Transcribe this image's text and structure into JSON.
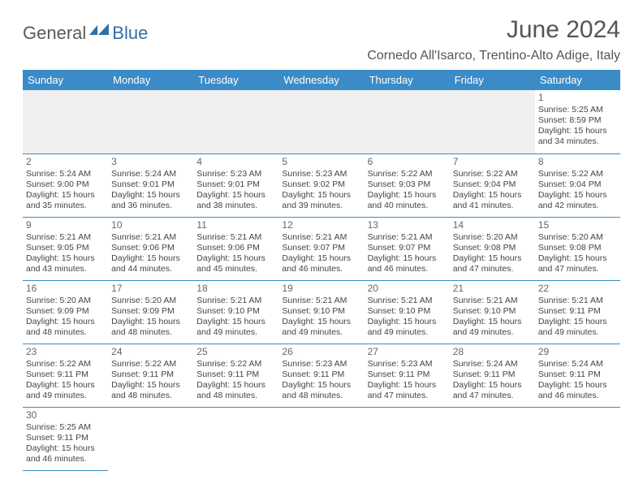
{
  "brand": {
    "part1": "General",
    "part2": "Blue"
  },
  "title": "June 2024",
  "location": "Cornedo All'Isarco, Trentino-Alto Adige, Italy",
  "colors": {
    "header_bg": "#3b8bc7",
    "header_fg": "#ffffff",
    "rule": "#3b8bc7"
  },
  "weekdays": [
    "Sunday",
    "Monday",
    "Tuesday",
    "Wednesday",
    "Thursday",
    "Friday",
    "Saturday"
  ],
  "weeks": [
    [
      null,
      null,
      null,
      null,
      null,
      null,
      {
        "n": "1",
        "sr": "Sunrise: 5:25 AM",
        "ss": "Sunset: 8:59 PM",
        "d1": "Daylight: 15 hours",
        "d2": "and 34 minutes."
      }
    ],
    [
      {
        "n": "2",
        "sr": "Sunrise: 5:24 AM",
        "ss": "Sunset: 9:00 PM",
        "d1": "Daylight: 15 hours",
        "d2": "and 35 minutes."
      },
      {
        "n": "3",
        "sr": "Sunrise: 5:24 AM",
        "ss": "Sunset: 9:01 PM",
        "d1": "Daylight: 15 hours",
        "d2": "and 36 minutes."
      },
      {
        "n": "4",
        "sr": "Sunrise: 5:23 AM",
        "ss": "Sunset: 9:01 PM",
        "d1": "Daylight: 15 hours",
        "d2": "and 38 minutes."
      },
      {
        "n": "5",
        "sr": "Sunrise: 5:23 AM",
        "ss": "Sunset: 9:02 PM",
        "d1": "Daylight: 15 hours",
        "d2": "and 39 minutes."
      },
      {
        "n": "6",
        "sr": "Sunrise: 5:22 AM",
        "ss": "Sunset: 9:03 PM",
        "d1": "Daylight: 15 hours",
        "d2": "and 40 minutes."
      },
      {
        "n": "7",
        "sr": "Sunrise: 5:22 AM",
        "ss": "Sunset: 9:04 PM",
        "d1": "Daylight: 15 hours",
        "d2": "and 41 minutes."
      },
      {
        "n": "8",
        "sr": "Sunrise: 5:22 AM",
        "ss": "Sunset: 9:04 PM",
        "d1": "Daylight: 15 hours",
        "d2": "and 42 minutes."
      }
    ],
    [
      {
        "n": "9",
        "sr": "Sunrise: 5:21 AM",
        "ss": "Sunset: 9:05 PM",
        "d1": "Daylight: 15 hours",
        "d2": "and 43 minutes."
      },
      {
        "n": "10",
        "sr": "Sunrise: 5:21 AM",
        "ss": "Sunset: 9:06 PM",
        "d1": "Daylight: 15 hours",
        "d2": "and 44 minutes."
      },
      {
        "n": "11",
        "sr": "Sunrise: 5:21 AM",
        "ss": "Sunset: 9:06 PM",
        "d1": "Daylight: 15 hours",
        "d2": "and 45 minutes."
      },
      {
        "n": "12",
        "sr": "Sunrise: 5:21 AM",
        "ss": "Sunset: 9:07 PM",
        "d1": "Daylight: 15 hours",
        "d2": "and 46 minutes."
      },
      {
        "n": "13",
        "sr": "Sunrise: 5:21 AM",
        "ss": "Sunset: 9:07 PM",
        "d1": "Daylight: 15 hours",
        "d2": "and 46 minutes."
      },
      {
        "n": "14",
        "sr": "Sunrise: 5:20 AM",
        "ss": "Sunset: 9:08 PM",
        "d1": "Daylight: 15 hours",
        "d2": "and 47 minutes."
      },
      {
        "n": "15",
        "sr": "Sunrise: 5:20 AM",
        "ss": "Sunset: 9:08 PM",
        "d1": "Daylight: 15 hours",
        "d2": "and 47 minutes."
      }
    ],
    [
      {
        "n": "16",
        "sr": "Sunrise: 5:20 AM",
        "ss": "Sunset: 9:09 PM",
        "d1": "Daylight: 15 hours",
        "d2": "and 48 minutes."
      },
      {
        "n": "17",
        "sr": "Sunrise: 5:20 AM",
        "ss": "Sunset: 9:09 PM",
        "d1": "Daylight: 15 hours",
        "d2": "and 48 minutes."
      },
      {
        "n": "18",
        "sr": "Sunrise: 5:21 AM",
        "ss": "Sunset: 9:10 PM",
        "d1": "Daylight: 15 hours",
        "d2": "and 49 minutes."
      },
      {
        "n": "19",
        "sr": "Sunrise: 5:21 AM",
        "ss": "Sunset: 9:10 PM",
        "d1": "Daylight: 15 hours",
        "d2": "and 49 minutes."
      },
      {
        "n": "20",
        "sr": "Sunrise: 5:21 AM",
        "ss": "Sunset: 9:10 PM",
        "d1": "Daylight: 15 hours",
        "d2": "and 49 minutes."
      },
      {
        "n": "21",
        "sr": "Sunrise: 5:21 AM",
        "ss": "Sunset: 9:10 PM",
        "d1": "Daylight: 15 hours",
        "d2": "and 49 minutes."
      },
      {
        "n": "22",
        "sr": "Sunrise: 5:21 AM",
        "ss": "Sunset: 9:11 PM",
        "d1": "Daylight: 15 hours",
        "d2": "and 49 minutes."
      }
    ],
    [
      {
        "n": "23",
        "sr": "Sunrise: 5:22 AM",
        "ss": "Sunset: 9:11 PM",
        "d1": "Daylight: 15 hours",
        "d2": "and 49 minutes."
      },
      {
        "n": "24",
        "sr": "Sunrise: 5:22 AM",
        "ss": "Sunset: 9:11 PM",
        "d1": "Daylight: 15 hours",
        "d2": "and 48 minutes."
      },
      {
        "n": "25",
        "sr": "Sunrise: 5:22 AM",
        "ss": "Sunset: 9:11 PM",
        "d1": "Daylight: 15 hours",
        "d2": "and 48 minutes."
      },
      {
        "n": "26",
        "sr": "Sunrise: 5:23 AM",
        "ss": "Sunset: 9:11 PM",
        "d1": "Daylight: 15 hours",
        "d2": "and 48 minutes."
      },
      {
        "n": "27",
        "sr": "Sunrise: 5:23 AM",
        "ss": "Sunset: 9:11 PM",
        "d1": "Daylight: 15 hours",
        "d2": "and 47 minutes."
      },
      {
        "n": "28",
        "sr": "Sunrise: 5:24 AM",
        "ss": "Sunset: 9:11 PM",
        "d1": "Daylight: 15 hours",
        "d2": "and 47 minutes."
      },
      {
        "n": "29",
        "sr": "Sunrise: 5:24 AM",
        "ss": "Sunset: 9:11 PM",
        "d1": "Daylight: 15 hours",
        "d2": "and 46 minutes."
      }
    ],
    [
      {
        "n": "30",
        "sr": "Sunrise: 5:25 AM",
        "ss": "Sunset: 9:11 PM",
        "d1": "Daylight: 15 hours",
        "d2": "and 46 minutes."
      },
      null,
      null,
      null,
      null,
      null,
      null
    ]
  ]
}
